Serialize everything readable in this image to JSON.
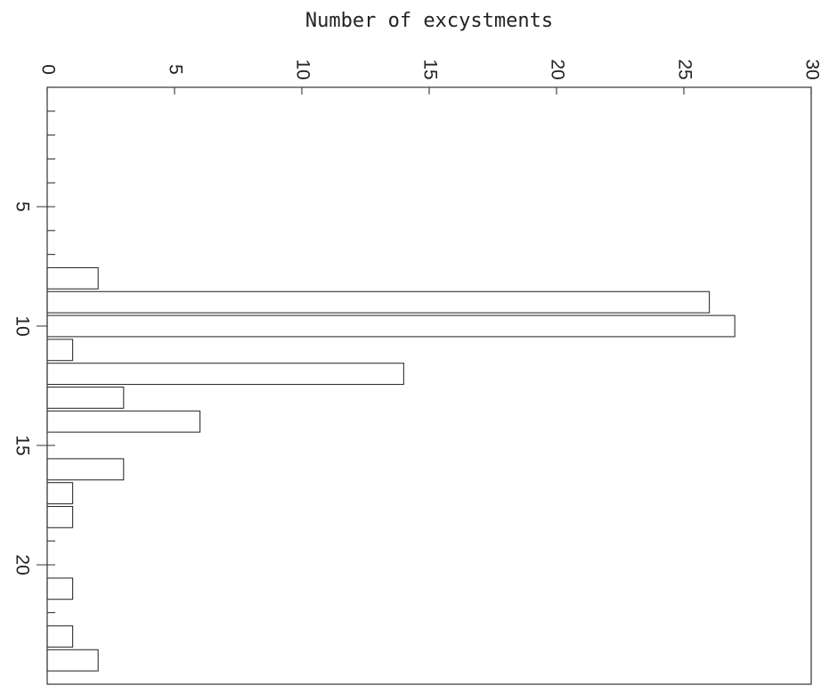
{
  "chart_data": {
    "type": "bar",
    "orientation": "horizontal",
    "value_axis_label": "Number of excystments",
    "value_axis_range": [
      0,
      30
    ],
    "value_ticks": [
      "0",
      "5",
      "10",
      "15",
      "20",
      "25",
      "30"
    ],
    "category_axis_range": [
      0,
      25
    ],
    "category_ticks": [
      "5",
      "10",
      "15",
      "20"
    ],
    "bars": [
      {
        "x": 8,
        "value": 2
      },
      {
        "x": 9,
        "value": 26
      },
      {
        "x": 10,
        "value": 27
      },
      {
        "x": 11,
        "value": 1
      },
      {
        "x": 12,
        "value": 14
      },
      {
        "x": 13,
        "value": 3
      },
      {
        "x": 14,
        "value": 6
      },
      {
        "x": 16,
        "value": 3
      },
      {
        "x": 17,
        "value": 1
      },
      {
        "x": 18,
        "value": 1
      },
      {
        "x": 21,
        "value": 1
      },
      {
        "x": 23,
        "value": 1
      },
      {
        "x": 24,
        "value": 2
      }
    ],
    "grid": false
  }
}
